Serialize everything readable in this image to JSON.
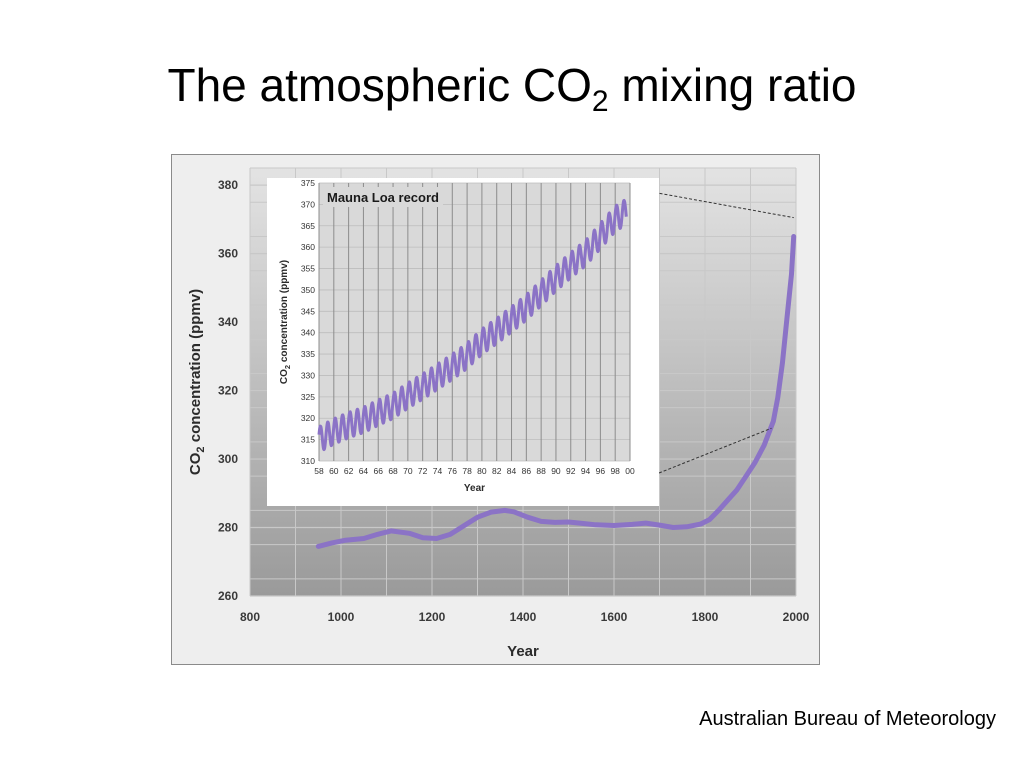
{
  "slide": {
    "title_main": "The atmospheric CO",
    "title_sub": "2",
    "title_rest": " mixing ratio",
    "source": "Australian Bureau of Meteorology"
  },
  "colors": {
    "series": "#8b73c6",
    "grid": "#c8c8c8"
  },
  "chart_data": [
    {
      "type": "line",
      "title": "",
      "xlabel": "Year",
      "ylabel_parts": [
        "CO",
        "2",
        " concentration (ppmv)"
      ],
      "xlim": [
        800,
        2000
      ],
      "ylim": [
        260,
        385
      ],
      "xticks": [
        800,
        1000,
        1200,
        1400,
        1600,
        1800,
        2000
      ],
      "yticks": [
        260,
        280,
        300,
        320,
        340,
        360,
        380
      ],
      "grid": true,
      "series": [
        {
          "x": [
            950,
            980,
            1010,
            1050,
            1080,
            1110,
            1150,
            1180,
            1210,
            1240,
            1270,
            1300,
            1330,
            1360,
            1380,
            1410,
            1440,
            1470,
            1500,
            1530,
            1560,
            1600,
            1640,
            1670,
            1700,
            1730,
            1760,
            1790,
            1810,
            1830,
            1850,
            1870,
            1890,
            1910,
            1930,
            1950,
            1960,
            1970,
            1980,
            1990,
            1995
          ],
          "y": [
            274.5,
            275.5,
            276.3,
            276.8,
            278,
            279,
            278.3,
            277,
            276.8,
            278,
            280.5,
            283,
            284.5,
            285,
            284.6,
            283,
            281.8,
            281.5,
            281.6,
            281.2,
            280.8,
            280.6,
            280.9,
            281.3,
            280.7,
            280,
            280.2,
            281,
            282.3,
            285,
            288,
            291,
            295,
            299,
            304,
            311,
            318,
            328,
            341,
            354,
            365
          ]
        }
      ],
      "zoom_range": {
        "x": [
          1958,
          2000
        ],
        "y": [
          310,
          370
        ]
      }
    },
    {
      "type": "line",
      "title": "Mauna Loa record",
      "xlabel": "Year",
      "ylabel_parts": [
        "CO",
        "2",
        " concentration (ppmv)"
      ],
      "xlim": [
        1958,
        2000
      ],
      "ylim": [
        310,
        375
      ],
      "xticks": [
        1958,
        1960,
        1962,
        1964,
        1966,
        1968,
        1970,
        1972,
        1974,
        1976,
        1978,
        1980,
        1982,
        1984,
        1986,
        1988,
        1990,
        1992,
        1994,
        1996,
        1998,
        2000
      ],
      "xtick_labels": [
        "58",
        "60",
        "62",
        "64",
        "66",
        "68",
        "70",
        "72",
        "74",
        "76",
        "78",
        "80",
        "82",
        "84",
        "86",
        "88",
        "90",
        "92",
        "94",
        "96",
        "98",
        "00"
      ],
      "yticks": [
        310,
        315,
        320,
        325,
        330,
        335,
        340,
        345,
        350,
        355,
        360,
        365,
        370,
        375
      ],
      "grid": true,
      "series": [
        {
          "x": [
            1958,
            1960,
            1962,
            1964,
            1966,
            1968,
            1970,
            1972,
            1974,
            1976,
            1978,
            1980,
            1982,
            1984,
            1986,
            1988,
            1990,
            1992,
            1994,
            1996,
            1998,
            1999.5
          ],
          "y": [
            315,
            316.9,
            318.4,
            319.6,
            321.3,
            322.9,
            325.3,
            327.4,
            329.7,
            332,
            334.6,
            337.9,
            340.4,
            343.1,
            345.9,
            349.3,
            352.7,
            355.8,
            358.6,
            362.6,
            366.6,
            368.3
          ],
          "seasonal_amplitude": 3
        }
      ]
    }
  ]
}
